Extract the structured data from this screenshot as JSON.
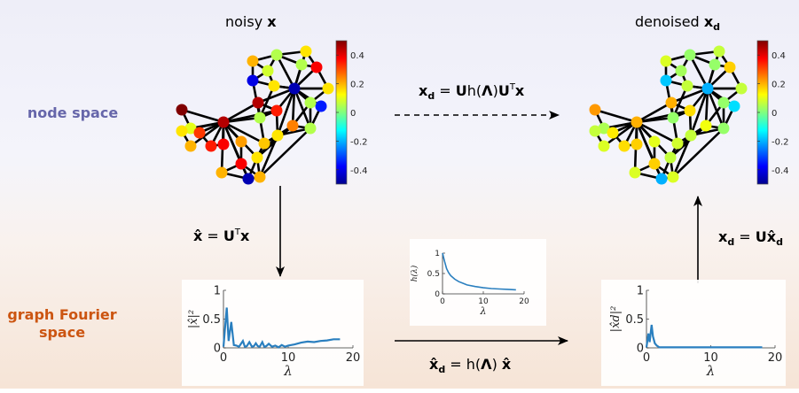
{
  "titles": {
    "noisy": "noisy",
    "noisy_var": "x",
    "denoised": "denoised",
    "denoised_var": "x",
    "denoised_sub": "d"
  },
  "rows": {
    "node_space": "node space",
    "fourier_1": "graph Fourier",
    "fourier_2": "space"
  },
  "colors": {
    "node_space": "#6666aa",
    "fourier": "#cc5511",
    "curve": "#2a7fbf"
  },
  "equations": {
    "top": {
      "lhs": "x",
      "lhs_sub": "d",
      "eq": " = ",
      "U1": "U",
      "h": "h(",
      "Lam": "Λ",
      "close": ")",
      "U2": "U",
      "sup": "T",
      "x": "x"
    },
    "left": {
      "lhs": "x̂",
      "eq": " = ",
      "U": "U",
      "sup": "T",
      "x": "x"
    },
    "right": {
      "lhs": "x",
      "lhs_sub": "d",
      "eq": " = ",
      "U": "U",
      "x": "x̂",
      "x_sub": "d"
    },
    "bottom": {
      "lhs": "x̂",
      "lhs_sub": "d",
      "eq": " = ",
      "h": "h(",
      "Lam": "Λ",
      "close": ") ",
      "x": "x̂"
    }
  },
  "colorbar": {
    "ticks": [
      "0.4",
      "0.2",
      "0",
      "-0.2",
      "-0.4"
    ],
    "range": [
      -0.5,
      0.5
    ]
  },
  "charts": {
    "noisy_spectrum": {
      "ylabel": "|x̂|²",
      "xlabel": "λ",
      "yticks": [
        "1",
        "0.5",
        "0"
      ],
      "xticks": [
        "0",
        "10",
        "20"
      ]
    },
    "filter": {
      "ylabel": "h(λ)",
      "xlabel": "λ",
      "yticks": [
        "1",
        "0.5",
        "0"
      ],
      "xticks": [
        "0",
        "10",
        "20"
      ]
    },
    "denoised_spectrum": {
      "ylabel": "|x̂d|²",
      "xlabel": "λ",
      "yticks": [
        "1",
        "0.5",
        "0"
      ],
      "xticks": [
        "0",
        "10",
        "20"
      ]
    }
  },
  "chart_data": [
    {
      "type": "line",
      "xlim": [
        0,
        20
      ],
      "ylim": [
        0,
        1
      ],
      "x": [
        0,
        0.5,
        0.8,
        1.2,
        1.6,
        2.0,
        2.4,
        3.0,
        3.3,
        3.6,
        4.0,
        4.4,
        4.7,
        5.0,
        5.3,
        5.6,
        6.0,
        6.3,
        6.6,
        7.0,
        7.5,
        8.0,
        8.5,
        9.0,
        9.5,
        10,
        11,
        12,
        13,
        14,
        15,
        16,
        17,
        18
      ],
      "y": [
        0.02,
        0.7,
        0.12,
        0.45,
        0.05,
        0.04,
        0.02,
        0.12,
        0.02,
        0.03,
        0.1,
        0.02,
        0.03,
        0.08,
        0.03,
        0.02,
        0.1,
        0.02,
        0.03,
        0.07,
        0.02,
        0.04,
        0.01,
        0.05,
        0.02,
        0.04,
        0.06,
        0.09,
        0.11,
        0.1,
        0.12,
        0.13,
        0.15,
        0.15
      ]
    },
    {
      "type": "line",
      "xlim": [
        0,
        20
      ],
      "ylim": [
        0,
        1
      ],
      "x": [
        0,
        0.5,
        1,
        1.5,
        2,
        3,
        4,
        5,
        6,
        8,
        10,
        12,
        14,
        16,
        18
      ],
      "y": [
        1.0,
        0.8,
        0.62,
        0.52,
        0.45,
        0.36,
        0.3,
        0.26,
        0.22,
        0.18,
        0.15,
        0.13,
        0.12,
        0.11,
        0.1
      ]
    },
    {
      "type": "line",
      "xlim": [
        0,
        20
      ],
      "ylim": [
        0,
        1
      ],
      "x": [
        0,
        0.3,
        0.5,
        0.8,
        1.0,
        1.3,
        1.6,
        2.0,
        3,
        5,
        10,
        15,
        18
      ],
      "y": [
        0.01,
        0.25,
        0.1,
        0.4,
        0.2,
        0.08,
        0.04,
        0.01,
        0.01,
        0.01,
        0.01,
        0.01,
        0.01
      ]
    }
  ],
  "graph": {
    "nodes": [
      [
        205,
        124,
        0.5
      ],
      [
        252,
        138,
        0.45
      ],
      [
        215,
        145,
        0.1
      ],
      [
        225,
        150,
        0.32
      ],
      [
        238,
        165,
        0.35
      ],
      [
        205,
        148,
        0.15
      ],
      [
        215,
        165,
        0.2
      ],
      [
        250,
        195,
        0.2
      ],
      [
        252,
        163,
        0.38
      ],
      [
        272,
        160,
        0.22
      ],
      [
        272,
        185,
        0.38
      ],
      [
        280,
        202,
        -0.45
      ],
      [
        293,
        200,
        0.2
      ],
      [
        290,
        178,
        0.15
      ],
      [
        298,
        162,
        0.18
      ],
      [
        293,
        133,
        0.05
      ],
      [
        291,
        116,
        0.45
      ],
      [
        312,
        125,
        0.35
      ],
      [
        313,
        153,
        0.15
      ],
      [
        330,
        142,
        0.25
      ],
      [
        350,
        145,
        0.05
      ],
      [
        362,
        120,
        -0.35
      ],
      [
        350,
        116,
        0.05
      ],
      [
        370,
        100,
        0.15
      ],
      [
        332,
        100,
        -0.45
      ],
      [
        309,
        97,
        0.15
      ],
      [
        285,
        91,
        -0.4
      ],
      [
        285,
        69,
        0.2
      ],
      [
        312,
        62,
        0.05
      ],
      [
        345,
        58,
        0.15
      ],
      [
        340,
        73,
        0.05
      ],
      [
        357,
        76,
        0.38
      ],
      [
        302,
        80,
        0.08
      ]
    ],
    "edges": [
      [
        1,
        0
      ],
      [
        1,
        2
      ],
      [
        1,
        3
      ],
      [
        1,
        4
      ],
      [
        1,
        5
      ],
      [
        1,
        6
      ],
      [
        1,
        7
      ],
      [
        1,
        8
      ],
      [
        1,
        9
      ],
      [
        1,
        10
      ],
      [
        1,
        11
      ],
      [
        1,
        13
      ],
      [
        1,
        14
      ],
      [
        1,
        15
      ],
      [
        1,
        16
      ],
      [
        1,
        17
      ],
      [
        0,
        2
      ],
      [
        2,
        3
      ],
      [
        3,
        4
      ],
      [
        5,
        6
      ],
      [
        2,
        5
      ],
      [
        4,
        8
      ],
      [
        9,
        10
      ],
      [
        10,
        11
      ],
      [
        11,
        12
      ],
      [
        12,
        13
      ],
      [
        13,
        14
      ],
      [
        14,
        15
      ],
      [
        15,
        16
      ],
      [
        16,
        17
      ],
      [
        17,
        18
      ],
      [
        18,
        19
      ],
      [
        19,
        20
      ],
      [
        20,
        21
      ],
      [
        21,
        22
      ],
      [
        22,
        23
      ],
      [
        23,
        24
      ],
      [
        24,
        25
      ],
      [
        25,
        26
      ],
      [
        26,
        27
      ],
      [
        27,
        28
      ],
      [
        28,
        29
      ],
      [
        29,
        30
      ],
      [
        30,
        31
      ],
      [
        27,
        32
      ],
      [
        32,
        28
      ],
      [
        24,
        17
      ],
      [
        24,
        18
      ],
      [
        24,
        19
      ],
      [
        24,
        20
      ],
      [
        24,
        21
      ],
      [
        24,
        22
      ],
      [
        24,
        23
      ],
      [
        24,
        30
      ],
      [
        24,
        31
      ],
      [
        24,
        29
      ],
      [
        24,
        28
      ],
      [
        24,
        25
      ],
      [
        24,
        16
      ],
      [
        7,
        10
      ],
      [
        7,
        11
      ],
      [
        10,
        12
      ],
      [
        12,
        18
      ],
      [
        13,
        18
      ],
      [
        14,
        18
      ],
      [
        11,
        13
      ],
      [
        12,
        20
      ],
      [
        18,
        20
      ],
      [
        15,
        17
      ],
      [
        15,
        25
      ],
      [
        26,
        15
      ],
      [
        26,
        32
      ],
      [
        25,
        32
      ],
      [
        28,
        30
      ],
      [
        29,
        31
      ],
      [
        23,
        31
      ],
      [
        22,
        20
      ],
      [
        19,
        22
      ],
      [
        13,
        19
      ]
    ]
  }
}
